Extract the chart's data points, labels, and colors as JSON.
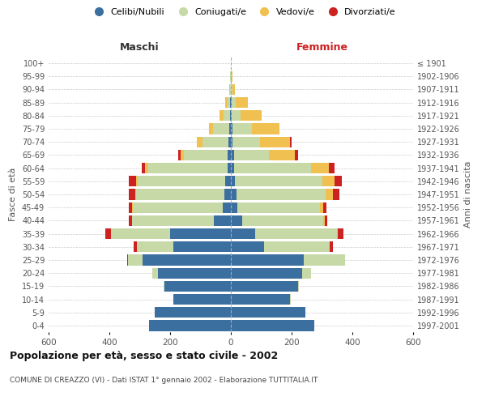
{
  "age_groups": [
    "0-4",
    "5-9",
    "10-14",
    "15-19",
    "20-24",
    "25-29",
    "30-34",
    "35-39",
    "40-44",
    "45-49",
    "50-54",
    "55-59",
    "60-64",
    "65-69",
    "70-74",
    "75-79",
    "80-84",
    "85-89",
    "90-94",
    "95-99",
    "100+"
  ],
  "birth_years": [
    "1997-2001",
    "1992-1996",
    "1987-1991",
    "1982-1986",
    "1977-1981",
    "1972-1976",
    "1967-1971",
    "1962-1966",
    "1957-1961",
    "1952-1956",
    "1947-1951",
    "1942-1946",
    "1937-1941",
    "1932-1936",
    "1927-1931",
    "1922-1926",
    "1917-1921",
    "1912-1916",
    "1907-1911",
    "1902-1906",
    "≤ 1901"
  ],
  "male": {
    "celibi": [
      270,
      250,
      190,
      220,
      240,
      290,
      190,
      200,
      55,
      28,
      22,
      18,
      12,
      10,
      8,
      5,
      3,
      2,
      0,
      0,
      0
    ],
    "coniugati": [
      0,
      0,
      0,
      2,
      18,
      50,
      120,
      195,
      270,
      295,
      290,
      290,
      260,
      145,
      85,
      55,
      20,
      10,
      4,
      2,
      0
    ],
    "vedovi": [
      0,
      0,
      0,
      0,
      0,
      0,
      0,
      0,
      1,
      2,
      3,
      5,
      12,
      10,
      18,
      12,
      15,
      8,
      2,
      1,
      0
    ],
    "divorziati": [
      0,
      0,
      0,
      0,
      0,
      2,
      10,
      18,
      10,
      10,
      20,
      22,
      10,
      8,
      2,
      0,
      0,
      0,
      0,
      0,
      0
    ]
  },
  "female": {
    "nubili": [
      275,
      245,
      195,
      220,
      235,
      240,
      110,
      80,
      38,
      22,
      18,
      12,
      10,
      10,
      5,
      5,
      3,
      2,
      1,
      0,
      0
    ],
    "coniugate": [
      0,
      0,
      2,
      5,
      28,
      135,
      215,
      270,
      265,
      270,
      295,
      290,
      255,
      115,
      90,
      65,
      30,
      15,
      5,
      2,
      0
    ],
    "vedove": [
      0,
      0,
      0,
      0,
      0,
      0,
      0,
      2,
      5,
      12,
      22,
      40,
      58,
      85,
      100,
      90,
      68,
      40,
      8,
      2,
      0
    ],
    "divorziate": [
      0,
      0,
      0,
      0,
      0,
      2,
      12,
      18,
      10,
      10,
      22,
      22,
      18,
      10,
      5,
      0,
      0,
      0,
      0,
      0,
      0
    ]
  },
  "colors": {
    "celibi": "#3b6fa0",
    "coniugati": "#c8d9a8",
    "vedovi": "#f0c050",
    "divorziati": "#cc2222"
  },
  "title": "Popolazione per età, sesso e stato civile - 2002",
  "subtitle": "COMUNE DI CREAZZO (VI) - Dati ISTAT 1° gennaio 2002 - Elaborazione TUTTITALIA.IT",
  "xlabel_left": "Maschi",
  "xlabel_right": "Femmine",
  "ylabel_left": "Fasce di età",
  "ylabel_right": "Anni di nascita",
  "xlim": 600,
  "bg_color": "#ffffff",
  "grid_color": "#cccccc"
}
